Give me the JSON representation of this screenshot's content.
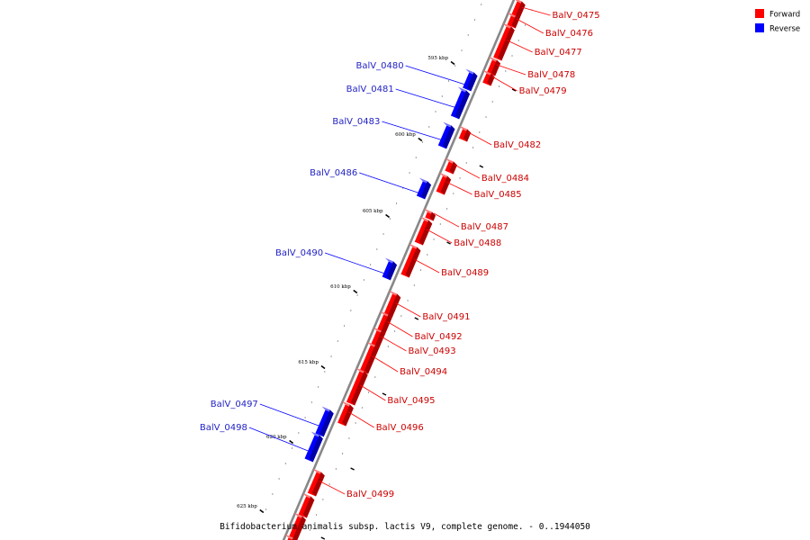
{
  "caption": "Bifidobacterium animalis subsp. lactis V9, complete genome. - 0..1944050",
  "legend": [
    {
      "label": "Forward",
      "color": "#ff0000"
    },
    {
      "label": "Reverse",
      "color": "#0000ff"
    }
  ],
  "colors": {
    "forward": "#ff0000",
    "reverse": "#0000ff",
    "backbone": "#888888"
  },
  "ticks": [
    "595 kbp",
    "600 kbp",
    "605 kbp",
    "610 kbp",
    "615 kbp",
    "620 kbp",
    "625 kbp"
  ],
  "genes": [
    {
      "name": "BalV_0475",
      "strand": "forward"
    },
    {
      "name": "BalV_0476",
      "strand": "forward"
    },
    {
      "name": "BalV_0477",
      "strand": "forward"
    },
    {
      "name": "BalV_0478",
      "strand": "forward"
    },
    {
      "name": "BalV_0479",
      "strand": "forward"
    },
    {
      "name": "BalV_0480",
      "strand": "reverse"
    },
    {
      "name": "BalV_0481",
      "strand": "reverse"
    },
    {
      "name": "BalV_0483",
      "strand": "reverse"
    },
    {
      "name": "BalV_0482",
      "strand": "forward"
    },
    {
      "name": "BalV_0484",
      "strand": "forward"
    },
    {
      "name": "BalV_0485",
      "strand": "forward"
    },
    {
      "name": "BalV_0486",
      "strand": "reverse"
    },
    {
      "name": "BalV_0487",
      "strand": "forward"
    },
    {
      "name": "BalV_0488",
      "strand": "forward"
    },
    {
      "name": "BalV_0489",
      "strand": "forward"
    },
    {
      "name": "BalV_0490",
      "strand": "reverse"
    },
    {
      "name": "BalV_0491",
      "strand": "forward"
    },
    {
      "name": "BalV_0492",
      "strand": "forward"
    },
    {
      "name": "BalV_0493",
      "strand": "forward"
    },
    {
      "name": "BalV_0494",
      "strand": "forward"
    },
    {
      "name": "BalV_0495",
      "strand": "forward"
    },
    {
      "name": "BalV_0496",
      "strand": "forward"
    },
    {
      "name": "BalV_0497",
      "strand": "reverse"
    },
    {
      "name": "BalV_0498",
      "strand": "reverse"
    },
    {
      "name": "BalV_0499",
      "strand": "forward"
    }
  ]
}
